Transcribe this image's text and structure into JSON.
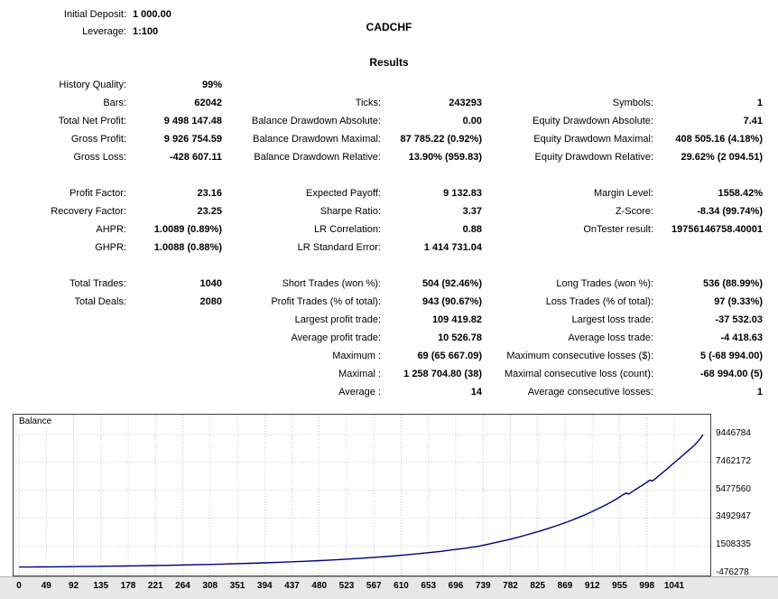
{
  "header": {
    "initial_deposit_label": "Initial Deposit:",
    "initial_deposit_value": "1 000.00",
    "leverage_label": "Leverage:",
    "leverage_value": "1:100",
    "symbol": "CADCHF",
    "results_title": "Results"
  },
  "stats": {
    "rows": [
      {
        "cells": [
          "History Quality:",
          "99%",
          "",
          "",
          "",
          ""
        ]
      },
      {
        "cells": [
          "Bars:",
          "62042",
          "Ticks:",
          "243293",
          "Symbols:",
          "1"
        ]
      },
      {
        "cells": [
          "Total Net Profit:",
          "9 498 147.48",
          "Balance Drawdown Absolute:",
          "0.00",
          "Equity Drawdown Absolute:",
          "7.41"
        ]
      },
      {
        "cells": [
          "Gross Profit:",
          "9 926 754.59",
          "Balance Drawdown Maximal:",
          "87 785.22 (0.92%)",
          "Equity Drawdown Maximal:",
          "408 505.16 (4.18%)"
        ]
      },
      {
        "cells": [
          "Gross Loss:",
          "-428 607.11",
          "Balance Drawdown Relative:",
          "13.90% (959.83)",
          "Equity Drawdown Relative:",
          "29.62% (2 094.51)"
        ]
      },
      {
        "cells": [
          "",
          "",
          "",
          "",
          "",
          ""
        ]
      },
      {
        "cells": [
          "Profit Factor:",
          "23.16",
          "Expected Payoff:",
          "9 132.83",
          "Margin Level:",
          "1558.42%"
        ]
      },
      {
        "cells": [
          "Recovery Factor:",
          "23.25",
          "Sharpe Ratio:",
          "3.37",
          "Z-Score:",
          "-8.34 (99.74%)"
        ]
      },
      {
        "cells": [
          "AHPR:",
          "1.0089 (0.89%)",
          "LR Correlation:",
          "0.88",
          "OnTester result:",
          "19756146758.40001"
        ]
      },
      {
        "cells": [
          "GHPR:",
          "1.0088 (0.88%)",
          "LR Standard Error:",
          "1 414 731.04",
          "",
          ""
        ]
      },
      {
        "cells": [
          "",
          "",
          "",
          "",
          "",
          ""
        ]
      },
      {
        "cells": [
          "Total Trades:",
          "1040",
          "Short Trades (won %):",
          "504 (92.46%)",
          "Long Trades (won %):",
          "536 (88.99%)"
        ]
      },
      {
        "cells": [
          "Total Deals:",
          "2080",
          "Profit Trades (% of total):",
          "943 (90.67%)",
          "Loss Trades (% of total):",
          "97 (9.33%)"
        ]
      },
      {
        "cells": [
          "",
          "",
          "Largest profit trade:",
          "109 419.82",
          "Largest loss trade:",
          "-37 532.03"
        ]
      },
      {
        "cells": [
          "",
          "",
          "Average profit trade:",
          "10 526.78",
          "Average loss trade:",
          "-4 418.63"
        ]
      },
      {
        "cells": [
          "",
          "",
          "Maximum :",
          "69 (65 667.09)",
          "Maximum consecutive losses ($):",
          "5 (-68 994.00)"
        ]
      },
      {
        "cells": [
          "",
          "",
          "Maximal :",
          "1 258 704.80 (38)",
          "Maximal consecutive loss (count):",
          "-68 994.00 (5)"
        ]
      },
      {
        "cells": [
          "",
          "",
          "Average :",
          "14",
          "Average consecutive losses:",
          "1"
        ]
      }
    ]
  },
  "chart_data": {
    "type": "line",
    "series_label": "Balance",
    "line_color": "#000080",
    "x_ticks": [
      0,
      49,
      92,
      135,
      178,
      221,
      264,
      308,
      351,
      394,
      437,
      480,
      523,
      567,
      610,
      653,
      696,
      739,
      782,
      825,
      869,
      912,
      955,
      998,
      1041
    ],
    "y_ticks": [
      9446784,
      7462172,
      5477560,
      3492947,
      1508335,
      -476278
    ],
    "x_range": [
      0,
      1041
    ],
    "y_range": [
      -605000,
      10864000
    ],
    "grid": true,
    "legend_position": "top-left",
    "points": [
      [
        0,
        1000
      ],
      [
        15,
        3500
      ],
      [
        30,
        7000
      ],
      [
        49,
        13000
      ],
      [
        70,
        21000
      ],
      [
        92,
        31000
      ],
      [
        113,
        43000
      ],
      [
        135,
        56000
      ],
      [
        157,
        70000
      ],
      [
        178,
        85000
      ],
      [
        200,
        101000
      ],
      [
        221,
        119000
      ],
      [
        243,
        139000
      ],
      [
        264,
        160000
      ],
      [
        286,
        183000
      ],
      [
        308,
        208000
      ],
      [
        330,
        236000
      ],
      [
        351,
        266000
      ],
      [
        372,
        298000
      ],
      [
        394,
        334000
      ],
      [
        415,
        373000
      ],
      [
        437,
        415000
      ],
      [
        458,
        461000
      ],
      [
        480,
        512000
      ],
      [
        501,
        568000
      ],
      [
        523,
        630000
      ],
      [
        545,
        700000
      ],
      [
        567,
        778000
      ],
      [
        588,
        864000
      ],
      [
        610,
        960000
      ],
      [
        630,
        1055000
      ],
      [
        641,
        1110000
      ],
      [
        653,
        1185000
      ],
      [
        665,
        1255000
      ],
      [
        678,
        1335000
      ],
      [
        690,
        1415000
      ],
      [
        696,
        1450000
      ],
      [
        705,
        1540000
      ],
      [
        715,
        1635000
      ],
      [
        725,
        1740000
      ],
      [
        739,
        1890000
      ],
      [
        750,
        2010000
      ],
      [
        760,
        2130000
      ],
      [
        770,
        2260000
      ],
      [
        782,
        2420000
      ],
      [
        795,
        2600000
      ],
      [
        808,
        2790000
      ],
      [
        820,
        2980000
      ],
      [
        825,
        3060000
      ],
      [
        835,
        3230000
      ],
      [
        845,
        3410000
      ],
      [
        855,
        3600000
      ],
      [
        862,
        3740000
      ],
      [
        869,
        3890000
      ],
      [
        876,
        4040000
      ],
      [
        884,
        4220000
      ],
      [
        892,
        4410000
      ],
      [
        900,
        4610000
      ],
      [
        906,
        4770000
      ],
      [
        912,
        4930000
      ],
      [
        918,
        5120000
      ],
      [
        924,
        5280000
      ],
      [
        928,
        5210000
      ],
      [
        934,
        5400000
      ],
      [
        940,
        5580000
      ],
      [
        947,
        5790000
      ],
      [
        955,
        6030000
      ],
      [
        960,
        6200000
      ],
      [
        964,
        6140000
      ],
      [
        969,
        6330000
      ],
      [
        975,
        6560000
      ],
      [
        981,
        6790000
      ],
      [
        987,
        7020000
      ],
      [
        992,
        7230000
      ],
      [
        998,
        7480000
      ],
      [
        1004,
        7720000
      ],
      [
        1010,
        7960000
      ],
      [
        1016,
        8200000
      ],
      [
        1022,
        8440000
      ],
      [
        1028,
        8700000
      ],
      [
        1033,
        8950000
      ],
      [
        1037,
        9180000
      ],
      [
        1041,
        9446784
      ]
    ]
  }
}
